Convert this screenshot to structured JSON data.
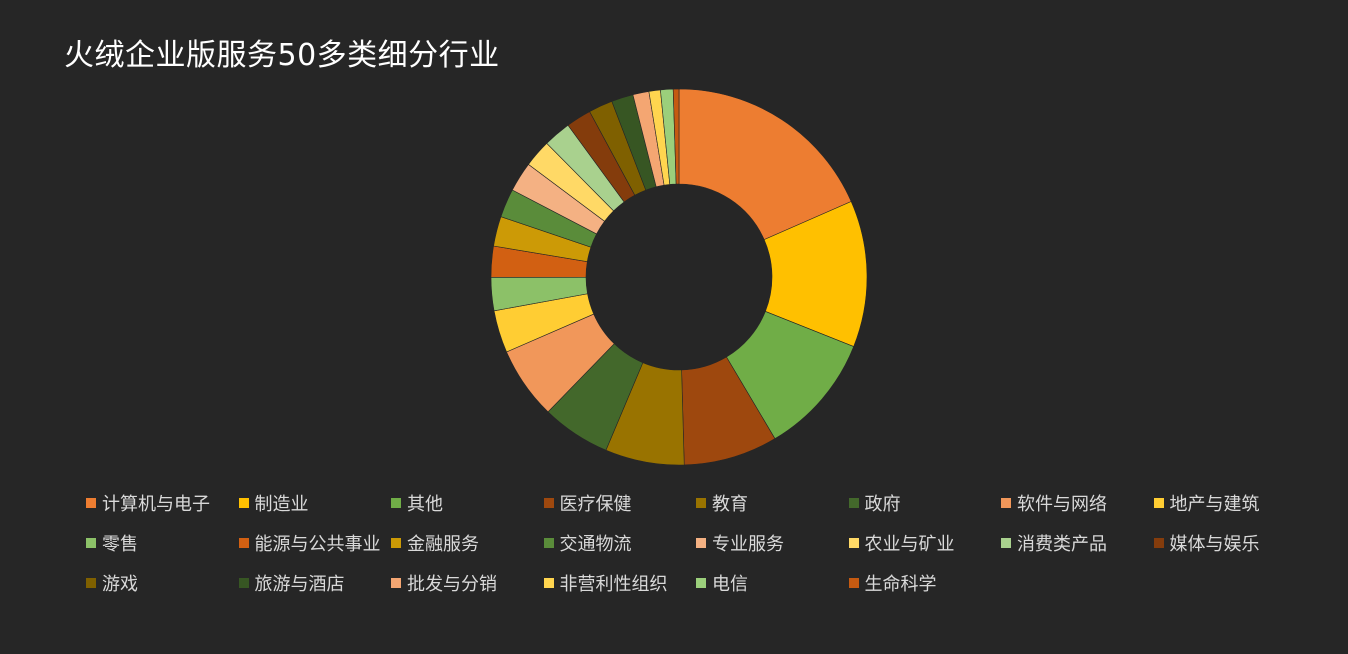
{
  "chart_data": {
    "type": "pie",
    "variant": "donut",
    "title": "火绒企业版服务50多类细分行业",
    "legend_position": "bottom",
    "categories": [
      "计算机与电子",
      "制造业",
      "其他",
      "医疗保健",
      "教育",
      "政府",
      "软件与网络",
      "地产与建筑",
      "零售",
      "能源与公共事业",
      "金融服务",
      "交通物流",
      "专业服务",
      "农业与矿业",
      "消费类产品",
      "媒体与娱乐",
      "游戏",
      "旅游与酒店",
      "批发与分销",
      "非营利性组织",
      "电信",
      "生命科学"
    ],
    "values": [
      18.7,
      12.8,
      10.6,
      8.2,
      6.9,
      6.0,
      6.3,
      3.7,
      2.9,
      2.7,
      2.6,
      2.5,
      2.6,
      2.4,
      2.4,
      2.2,
      2.1,
      1.9,
      1.4,
      1.0,
      1.1,
      0.5
    ],
    "colors": [
      "#ed7d31",
      "#ffc000",
      "#70ad47",
      "#9e480e",
      "#997300",
      "#43682b",
      "#f1975a",
      "#ffcd33",
      "#8cc168",
      "#d26012",
      "#cc9a06",
      "#5a8c3a",
      "#f4b183",
      "#ffd966",
      "#a9d18e",
      "#843c0c",
      "#7f6000",
      "#375623",
      "#f4a672",
      "#ffd54f",
      "#9bcf7b",
      "#c55a11"
    ]
  }
}
